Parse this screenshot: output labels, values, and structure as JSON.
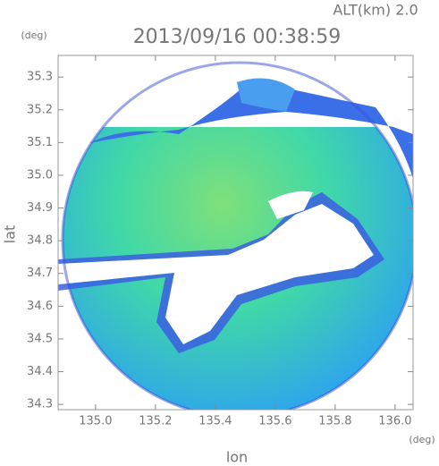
{
  "chart_data": {
    "type": "radar-map",
    "annotation": "ALT(km) 2.0",
    "title": "2013/09/16 00:38:59",
    "y_unit": "(deg)",
    "x_unit": "(deg)",
    "xlabel": "lon",
    "ylabel": "lat",
    "xlim": [
      134.875,
      136.06
    ],
    "ylim": [
      34.284,
      35.366
    ],
    "xticks": [
      {
        "value": 135.0,
        "label": "135.0"
      },
      135.2,
      135.4,
      135.6,
      135.8,
      {
        "value": 136.0,
        "label": "136.0"
      }
    ],
    "yticks": [
      35.3,
      35.2,
      35.1,
      {
        "value": 35.0,
        "label": "35.0"
      },
      34.9,
      34.8,
      34.7,
      34.6,
      34.5,
      34.4,
      34.3
    ]
  }
}
